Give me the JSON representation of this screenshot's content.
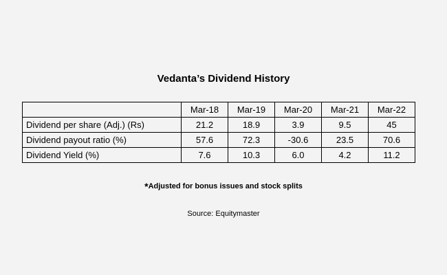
{
  "chart_data": {
    "type": "table",
    "title": "Vedanta’s Dividend History",
    "columns": [
      "",
      "Mar-18",
      "Mar-19",
      "Mar-20",
      "Mar-21",
      "Mar-22"
    ],
    "rows": [
      {
        "label": "Dividend per share (Adj.) (Rs)",
        "values": [
          "21.2",
          "18.9",
          "3.9",
          "9.5",
          "45"
        ]
      },
      {
        "label": "Dividend payout ratio (%)",
        "values": [
          "57.6",
          "72.3",
          "-30.6",
          "23.5",
          "70.6"
        ]
      },
      {
        "label": "Dividend Yield (%)",
        "values": [
          "7.6",
          "10.3",
          "6.0",
          "4.2",
          "11.2"
        ]
      }
    ],
    "footnote_mark": "*",
    "footnote": "Adjusted for bonus issues and stock splits",
    "source": "Source: Equitymaster"
  }
}
